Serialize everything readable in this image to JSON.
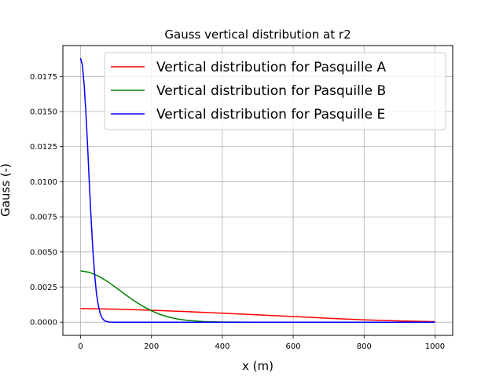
{
  "chart_data": {
    "type": "line",
    "title": "Gauss vertical distribution at r2",
    "xlabel": "x (m)",
    "ylabel": "Gauss (-)",
    "xlim": [
      -50,
      1050
    ],
    "ylim": [
      -0.00094,
      0.0197
    ],
    "x_ticks": [
      0,
      200,
      400,
      600,
      800,
      1000
    ],
    "x_tick_labels": [
      "0",
      "200",
      "400",
      "600",
      "800",
      "1000"
    ],
    "y_ticks": [
      0.0,
      0.0025,
      0.005,
      0.0075,
      0.01,
      0.0125,
      0.015,
      0.0175
    ],
    "y_tick_labels": [
      "0.0000",
      "0.0025",
      "0.0050",
      "0.0075",
      "0.0100",
      "0.0125",
      "0.0150",
      "0.0175"
    ],
    "grid": true,
    "legend_position": "top-right",
    "series": [
      {
        "name": "Vertical distribution for Pasquille A",
        "color": "#ff0000",
        "x": [
          0,
          100,
          200,
          300,
          400,
          500,
          600,
          700,
          800,
          900,
          1000
        ],
        "y": [
          0.00097,
          0.00093,
          0.00085,
          0.00075,
          0.00064,
          0.00052,
          0.0004,
          0.00028,
          0.00017,
          9e-05,
          4e-05
        ]
      },
      {
        "name": "Vertical distribution for Pasquille B",
        "color": "#008000",
        "x": [
          0,
          25,
          50,
          75,
          100,
          125,
          150,
          175,
          200,
          225,
          250,
          275,
          300,
          350,
          400,
          500,
          1000
        ],
        "y": [
          0.00365,
          0.00355,
          0.00329,
          0.00291,
          0.00246,
          0.00199,
          0.00154,
          0.00114,
          0.00081,
          0.00054,
          0.00035,
          0.00022,
          0.00013,
          4e-05,
          1e-05,
          0.0,
          0.0
        ]
      },
      {
        "name": "Vertical distribution for Pasquille E",
        "color": "#0000ff",
        "x": [
          0,
          5,
          10,
          15,
          20,
          25,
          30,
          35,
          40,
          45,
          50,
          55,
          60,
          65,
          70,
          80,
          90,
          100,
          200,
          1000
        ],
        "y": [
          0.0188,
          0.0183,
          0.0169,
          0.0149,
          0.0124,
          0.0097,
          0.0072,
          0.005,
          0.0033,
          0.002,
          0.0012,
          0.00065,
          0.00033,
          0.00016,
          7e-05,
          1e-05,
          0.0,
          0.0,
          0.0,
          0.0
        ]
      }
    ]
  }
}
